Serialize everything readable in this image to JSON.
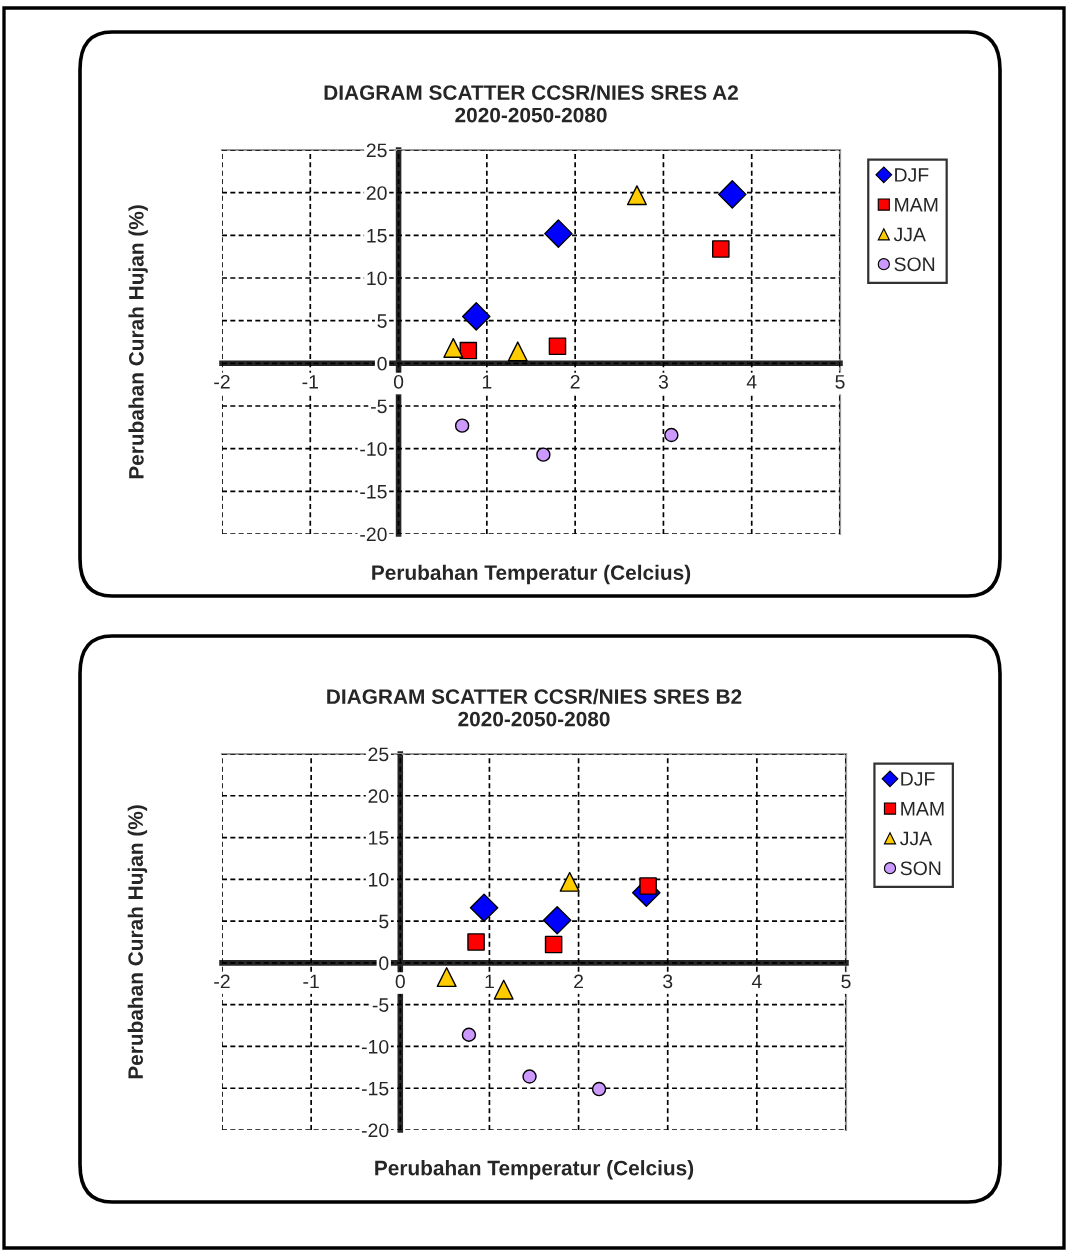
{
  "chart_data": [
    {
      "type": "scatter",
      "title": "DIAGRAM SCATTER CCSR/NIES SRES A2\n2020-2050-2080",
      "xlabel": "Perubahan Temperatur (Celcius)",
      "ylabel": "Perubahan Curah Hujan (%)",
      "xlim": [
        -2,
        5
      ],
      "xticks": [
        -2,
        -1,
        0,
        1,
        2,
        3,
        4,
        5
      ],
      "ylim": [
        -20,
        25
      ],
      "yticks": [
        -20,
        -15,
        -10,
        -5,
        0,
        5,
        10,
        15,
        20,
        25
      ],
      "grid": true,
      "legend": "right",
      "series": [
        {
          "name": "DJF",
          "color": "#0000ff",
          "marker": "diamond",
          "x": [
            0.88,
            1.81,
            3.78
          ],
          "values": [
            5.5,
            15.2,
            19.8
          ]
        },
        {
          "name": "MAM",
          "color": "#ff0000",
          "marker": "square",
          "x": [
            0.79,
            1.8,
            3.65
          ],
          "values": [
            1.5,
            2.0,
            13.4
          ]
        },
        {
          "name": "JJA",
          "color": "#ffcc00",
          "marker": "triangle",
          "x": [
            0.62,
            1.35,
            2.7
          ],
          "values": [
            1.8,
            1.4,
            19.7
          ]
        },
        {
          "name": "SON",
          "color": "#cc99ff",
          "marker": "circle",
          "x": [
            0.72,
            1.64,
            3.09
          ],
          "values": [
            -7.3,
            -10.7,
            -8.4
          ]
        }
      ]
    },
    {
      "type": "scatter",
      "title": "DIAGRAM SCATTER CCSR/NIES SRES B2\n2020-2050-2080",
      "xlabel": "Perubahan Temperatur (Celcius)",
      "ylabel": "Perubahan Curah Hujan (%)",
      "xlim": [
        -2,
        5
      ],
      "xticks": [
        -2,
        -1,
        0,
        1,
        2,
        3,
        4,
        5
      ],
      "ylim": [
        -20,
        25
      ],
      "yticks": [
        -20,
        -15,
        -10,
        -5,
        0,
        5,
        10,
        15,
        20,
        25
      ],
      "grid": true,
      "legend": "right",
      "series": [
        {
          "name": "DJF",
          "color": "#0000ff",
          "marker": "diamond",
          "x": [
            0.94,
            1.76,
            2.76
          ],
          "values": [
            6.6,
            5.1,
            8.4
          ]
        },
        {
          "name": "MAM",
          "color": "#ff0000",
          "marker": "square",
          "x": [
            0.85,
            1.72,
            2.78
          ],
          "values": [
            2.5,
            2.2,
            9.2
          ]
        },
        {
          "name": "JJA",
          "color": "#ffcc00",
          "marker": "triangle",
          "x": [
            0.52,
            1.16,
            1.9
          ],
          "values": [
            -1.7,
            -3.2,
            9.7
          ]
        },
        {
          "name": "SON",
          "color": "#cc99ff",
          "marker": "circle",
          "x": [
            0.77,
            1.45,
            2.23
          ],
          "values": [
            -8.6,
            -13.6,
            -15.1
          ]
        }
      ]
    }
  ]
}
